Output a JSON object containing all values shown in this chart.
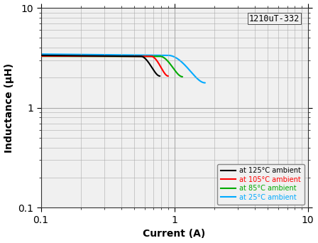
{
  "title": "1210uT-332",
  "xlabel": "Current (A)",
  "ylabel": "Inductance (μH)",
  "xlim": [
    0.1,
    10
  ],
  "ylim": [
    0.1,
    10
  ],
  "plot_bg_color": "#f0f0f0",
  "fig_bg_color": "#ffffff",
  "grid_color": "#aaaaaa",
  "curves": [
    {
      "label": "at 125°C ambient",
      "color": "#000000",
      "x_start": 0.1,
      "x_drop_start": 0.56,
      "x_drop_end": 0.78,
      "L_flat": 3.28,
      "L_flat_start": 3.35,
      "L_end": 2.08
    },
    {
      "label": "at 105°C ambient",
      "color": "#ff0000",
      "x_start": 0.1,
      "x_drop_start": 0.67,
      "x_drop_end": 0.9,
      "L_flat": 3.28,
      "L_flat_start": 3.3,
      "L_end": 2.08
    },
    {
      "label": "at 85°C ambient",
      "color": "#00aa00",
      "x_start": 0.1,
      "x_drop_start": 0.78,
      "x_drop_end": 1.15,
      "L_flat": 3.28,
      "L_flat_start": 3.28,
      "L_end": 2.05
    },
    {
      "label": "at 25°C ambient",
      "color": "#00aaff",
      "x_start": 0.1,
      "x_drop_start": 0.9,
      "x_drop_end": 1.7,
      "L_flat": 3.35,
      "L_flat_start": 3.45,
      "L_end": 1.78
    }
  ],
  "legend_colors": [
    "#000000",
    "#ff0000",
    "#00aa00",
    "#00aaff"
  ],
  "legend_labels": [
    "at 125°C ambient",
    "at 105°C ambient",
    "at 85°C ambient",
    "at 25°C ambient"
  ]
}
